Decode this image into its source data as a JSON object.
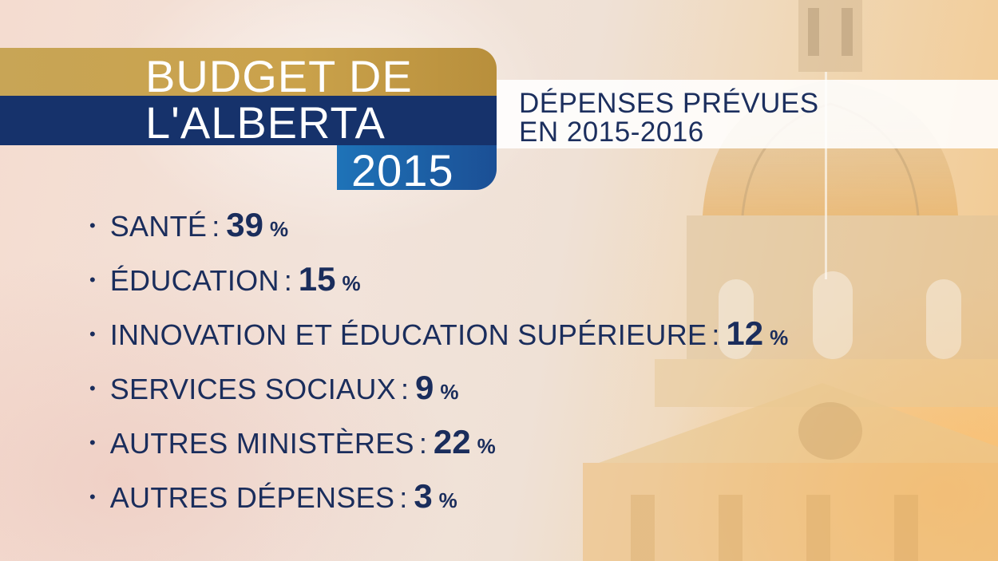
{
  "title": {
    "line1": "BUDGET DE",
    "line2": "L'ALBERTA",
    "year": "2015"
  },
  "subtitle": {
    "line1": "DÉPENSES PRÉVUES",
    "line2": "EN 2015-2016"
  },
  "items": [
    {
      "label": "SANTÉ",
      "value": "39",
      "unit": "%"
    },
    {
      "label": "ÉDUCATION",
      "value": "15",
      "unit": "%"
    },
    {
      "label": "INNOVATION ET ÉDUCATION SUPÉRIEURE",
      "value": "12",
      "unit": "%"
    },
    {
      "label": "SERVICES SOCIAUX",
      "value": "9",
      "unit": "%"
    },
    {
      "label": "AUTRES MINISTÈRES",
      "value": "22",
      "unit": "%"
    },
    {
      "label": "AUTRES DÉPENSES",
      "value": "3",
      "unit": "%"
    }
  ],
  "colors": {
    "gold": "#c8a556",
    "navy": "#16326b",
    "blue": "#1e73b8",
    "text": "#1a2d5c"
  },
  "icons": {
    "background": "legislature-building-image",
    "bullet": "bullet-dot"
  }
}
